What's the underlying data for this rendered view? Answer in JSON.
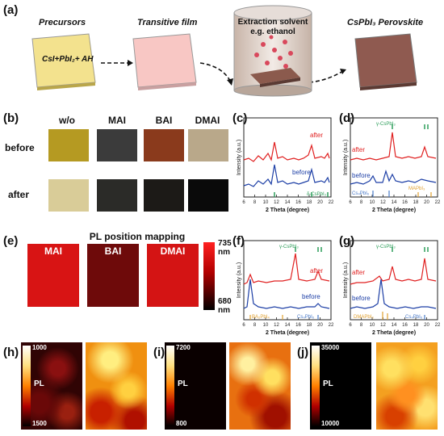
{
  "panels": {
    "a": "(a)",
    "b": "(b)",
    "c": "(c)",
    "d": "(d)",
    "e": "(e)",
    "f": "(f)",
    "g": "(g)",
    "h": "(h)",
    "i": "(i)",
    "j": "(j)"
  },
  "panel_a": {
    "stage1_title": "Precursors",
    "stage1_text": "CsI+PbI₂+ AH",
    "stage2_title": "Transitive film",
    "stage3_title": "Extraction solvent",
    "stage3_sub": "e.g. ethanol",
    "stage4_title": "CsPbI₃ Perovskite"
  },
  "panel_b": {
    "columns": [
      "w/o",
      "MAI",
      "BAI",
      "DMAI"
    ],
    "rows": [
      "before",
      "after"
    ],
    "colors_before": [
      "#b59a22",
      "#3b3b3b",
      "#8a3a1c",
      "#b9a88a"
    ],
    "colors_after": [
      "#d9cc98",
      "#2b2b28",
      "#1c1a17",
      "#0a0a0a"
    ]
  },
  "xrd": {
    "xlabel": "2 Theta (degree)",
    "ylabel": "Intensity (a.u.)",
    "ticks": [
      "6",
      "8",
      "10",
      "12",
      "14",
      "16",
      "18",
      "20",
      "22"
    ],
    "c": {
      "after": "after",
      "before": "before",
      "phase": "δ-CsPbI₃"
    },
    "d": {
      "after": "after",
      "before": "before",
      "gamma": "γ-CsPbI₃",
      "cs4": "Cs₄PbI₆",
      "ma": "MAPbI₃"
    },
    "f": {
      "after": "after",
      "before": "before",
      "gamma": "γ-CsPbI₃",
      "ba": "BA₂PbI₄",
      "cs4": "Cs₄PbI₆"
    },
    "g": {
      "after": "after",
      "before": "before",
      "gamma": "γ-CsPbI₃",
      "dma": "DMAPbI₃",
      "cs4": "Cs₄PbI₆"
    }
  },
  "panel_e": {
    "title": "PL position mapping",
    "maps": [
      "MAI",
      "BAI",
      "DMAI"
    ],
    "scale_top": "735",
    "scale_top_unit": "nm",
    "scale_bottom": "680",
    "scale_bottom_unit": "nm"
  },
  "pl_maps": {
    "label": "PL",
    "h": {
      "top": "1000",
      "bottom": "1500"
    },
    "i": {
      "top": "7200",
      "bottom": "800"
    },
    "j": {
      "top": "35000",
      "bottom": "10000"
    }
  }
}
